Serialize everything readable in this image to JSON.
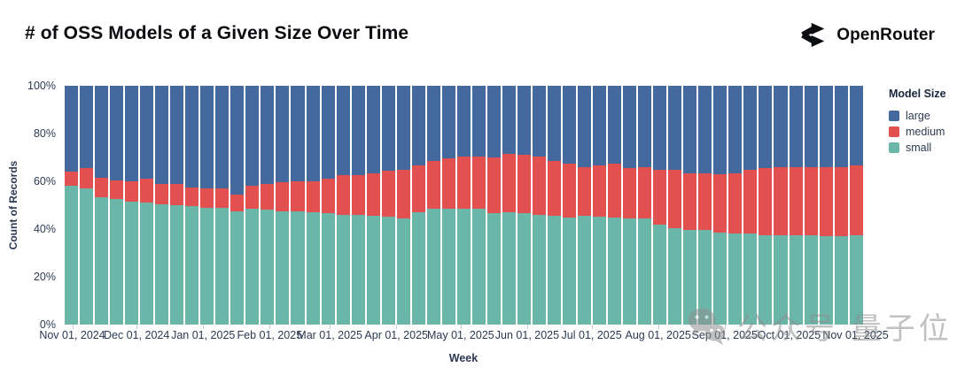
{
  "header": {
    "title": "# of OSS Models of a Given Size Over Time",
    "brand": "OpenRouter"
  },
  "legend": {
    "title": "Model Size",
    "items": [
      {
        "label": "large",
        "color": "#44699e"
      },
      {
        "label": "medium",
        "color": "#e25150"
      },
      {
        "label": "small",
        "color": "#6ab6a9"
      }
    ]
  },
  "watermark": {
    "text": "公众号 量子位"
  },
  "chart_data": {
    "type": "bar",
    "stacked": true,
    "normalized": "percent",
    "title": "# of OSS Models of a Given Size Over Time",
    "xlabel": "Week",
    "ylabel": "Count of Records",
    "ylim": [
      0,
      100
    ],
    "grid": false,
    "legend_position": "right",
    "y_ticks": [
      "0%",
      "20%",
      "40%",
      "60%",
      "80%",
      "100%"
    ],
    "x_ticks": [
      {
        "label": "Nov 01, 2024",
        "day": 0
      },
      {
        "label": "Dec 01, 2024",
        "day": 30
      },
      {
        "label": "Jan 01, 2025",
        "day": 61
      },
      {
        "label": "Feb 01, 2025",
        "day": 92
      },
      {
        "label": "Mar 01, 2025",
        "day": 120
      },
      {
        "label": "Apr 01, 2025",
        "day": 151
      },
      {
        "label": "May 01, 2025",
        "day": 181
      },
      {
        "label": "Jun 01, 2025",
        "day": 212
      },
      {
        "label": "Jul 01, 2025",
        "day": 242
      },
      {
        "label": "Aug 01, 2025",
        "day": 273
      },
      {
        "label": "Sep 01, 2025",
        "day": 304
      },
      {
        "label": "Oct 01, 2025",
        "day": 334
      },
      {
        "label": "Nov 01, 2025",
        "day": 365
      }
    ],
    "series_colors": {
      "small": "#6ab6a9",
      "medium": "#e25150",
      "large": "#44699e"
    },
    "stack_order_top_to_bottom": [
      "large",
      "medium",
      "small"
    ],
    "categories": [
      "Nov 01, 2024",
      "Nov 08, 2024",
      "Nov 15, 2024",
      "Nov 22, 2024",
      "Nov 29, 2024",
      "Dec 06, 2024",
      "Dec 13, 2024",
      "Dec 20, 2024",
      "Dec 27, 2024",
      "Jan 03, 2025",
      "Jan 10, 2025",
      "Jan 17, 2025",
      "Jan 24, 2025",
      "Jan 31, 2025",
      "Feb 07, 2025",
      "Feb 14, 2025",
      "Feb 21, 2025",
      "Feb 28, 2025",
      "Mar 07, 2025",
      "Mar 14, 2025",
      "Mar 21, 2025",
      "Mar 28, 2025",
      "Apr 04, 2025",
      "Apr 11, 2025",
      "Apr 18, 2025",
      "Apr 25, 2025",
      "May 02, 2025",
      "May 09, 2025",
      "May 16, 2025",
      "May 23, 2025",
      "May 30, 2025",
      "Jun 06, 2025",
      "Jun 13, 2025",
      "Jun 20, 2025",
      "Jun 27, 2025",
      "Jul 04, 2025",
      "Jul 11, 2025",
      "Jul 18, 2025",
      "Jul 25, 2025",
      "Aug 01, 2025",
      "Aug 08, 2025",
      "Aug 15, 2025",
      "Aug 22, 2025",
      "Aug 29, 2025",
      "Sep 05, 2025",
      "Sep 12, 2025",
      "Sep 19, 2025",
      "Sep 26, 2025",
      "Oct 03, 2025",
      "Oct 10, 2025",
      "Oct 17, 2025",
      "Oct 24, 2025",
      "Oct 31, 2025"
    ],
    "series": [
      {
        "name": "small",
        "values": [
          58,
          57,
          53.5,
          52.5,
          51.5,
          51,
          50.5,
          50,
          49.5,
          49,
          49,
          47.5,
          48.5,
          48,
          47.5,
          47.5,
          47,
          46.5,
          46,
          46,
          45.5,
          45,
          44.5,
          47,
          48.5,
          48.5,
          48.5,
          48.5,
          46.5,
          47,
          46.5,
          46,
          45.5,
          45,
          45.5,
          45,
          45,
          44.5,
          44.5,
          42,
          40.5,
          39.5,
          39.5,
          38.5,
          38,
          38,
          37.5,
          37.5,
          37.5,
          37.5,
          37,
          37,
          37.5
        ]
      },
      {
        "name": "medium",
        "values": [
          6,
          8.5,
          8,
          8,
          8.5,
          10,
          8.5,
          9,
          8,
          8,
          8,
          7,
          9.5,
          11,
          12,
          12.5,
          13,
          14.5,
          16.5,
          16.5,
          18,
          19.5,
          20.5,
          19.5,
          20,
          21,
          22,
          22,
          23.5,
          24.5,
          24.5,
          24.5,
          23,
          22.5,
          20.5,
          21.5,
          22.5,
          21,
          21.5,
          23,
          24.5,
          24,
          24,
          24.5,
          25.5,
          27,
          28,
          28.5,
          28.5,
          28.5,
          29,
          29,
          29
        ]
      },
      {
        "name": "large",
        "values": [
          36,
          34.5,
          38.5,
          39.5,
          40,
          39,
          41,
          41,
          42.5,
          43,
          43,
          45.5,
          42,
          41,
          40.5,
          40,
          40,
          39,
          37.5,
          37.5,
          36.5,
          35.5,
          35,
          33.5,
          31.5,
          30.5,
          29.5,
          29.5,
          30,
          28.5,
          29,
          29.5,
          31.5,
          32.5,
          34,
          33.5,
          32.5,
          34.5,
          34,
          35,
          35,
          36.5,
          36.5,
          37,
          36.5,
          35,
          34.5,
          34,
          34,
          34,
          34,
          34,
          33.5
        ]
      }
    ]
  }
}
